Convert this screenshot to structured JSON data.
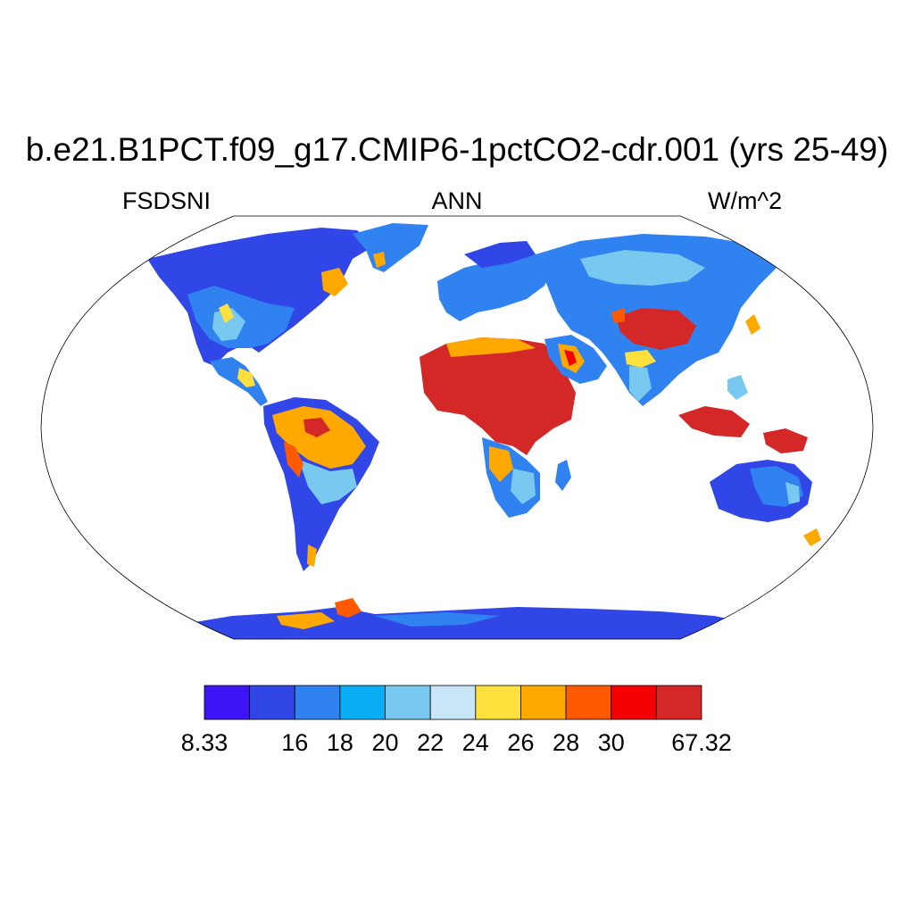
{
  "title": "b.e21.B1PCT.f09_g17.CMIP6-1pctCO2-cdr.001 (yrs 25-49)",
  "variable": "FSDSNI",
  "season": "ANN",
  "units": "W/m^2",
  "colorbar": {
    "colors": [
      "#3c14f5",
      "#3046e6",
      "#2f82ef",
      "#0aaef5",
      "#78c8f0",
      "#c8e6f8",
      "#ffe03c",
      "#ffa800",
      "#ff5a00",
      "#f50000",
      "#d42828"
    ],
    "labels": [
      "8.33",
      "",
      "16",
      "18",
      "20",
      "22",
      "24",
      "26",
      "28",
      "30",
      "",
      "67.32"
    ]
  },
  "map_colors": {
    "land_default": "#2f82ef",
    "coast": "#000000",
    "frame": "#000000"
  }
}
